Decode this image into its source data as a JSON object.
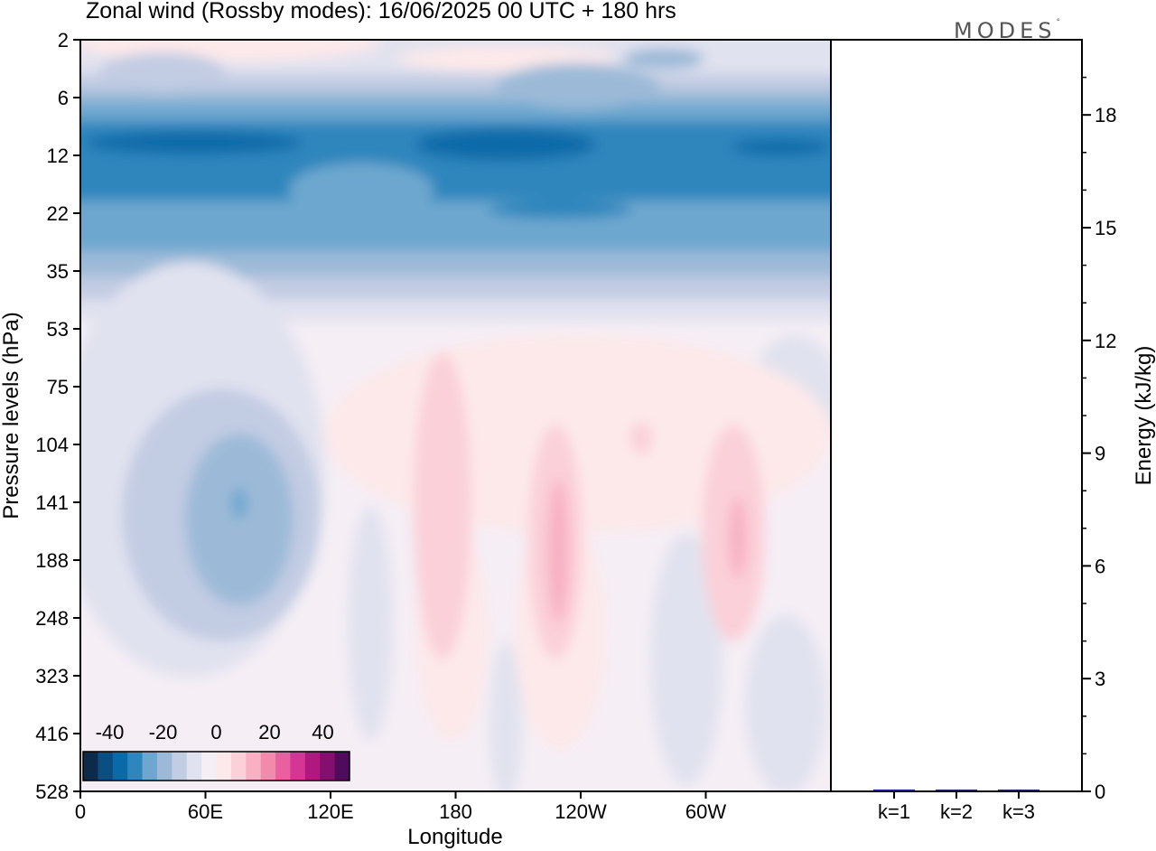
{
  "title": "Zonal wind (Rossby modes):  16/06/2025  00 UTC  + 180 hrs",
  "logo": {
    "text": "MODES",
    "mark": "°"
  },
  "chart_data": [
    {
      "type": "heatmap",
      "title": "Zonal wind (Rossby modes):  16/06/2025  00 UTC  + 180 hrs",
      "xlabel": "Longitude",
      "ylabel": "Pressure levels (hPa)",
      "x_ticks": [
        "0",
        "60E",
        "120E",
        "180",
        "120W",
        "60W"
      ],
      "x_tick_degrees": [
        0,
        60,
        120,
        180,
        240,
        300
      ],
      "xlim": [
        0,
        360
      ],
      "y_ticks": [
        "2",
        "6",
        "12",
        "22",
        "35",
        "53",
        "75",
        "104",
        "141",
        "188",
        "248",
        "323",
        "416",
        "528"
      ],
      "colorbar": {
        "tick_labels": [
          "-40",
          "-20",
          "0",
          "20",
          "40"
        ],
        "tick_values": [
          -40,
          -20,
          0,
          20,
          40
        ],
        "range": [
          -50,
          50
        ],
        "colors": [
          "#0c2a4a",
          "#0b4f82",
          "#0a6aa8",
          "#2f86bd",
          "#6da7cf",
          "#9cbad8",
          "#c2cce3",
          "#e1e2ef",
          "#f5eef5",
          "#fde9ea",
          "#fbd0d8",
          "#f8b0c2",
          "#f28aae",
          "#ea5fa0",
          "#d53594",
          "#b0177f",
          "#83106f",
          "#4f0b5c"
        ]
      }
    },
    {
      "type": "bar",
      "ylabel": "Energy (kJ/kg)",
      "ylim": [
        0,
        20
      ],
      "y_ticks": [
        "0",
        "3",
        "6",
        "9",
        "12",
        "15",
        "18"
      ],
      "y_tick_values": [
        0,
        3,
        6,
        9,
        12,
        15,
        18
      ],
      "categories": [
        "k=1",
        "k=2",
        "k=3"
      ],
      "values": [
        0.05,
        0.02,
        0.02
      ],
      "bar_colors": [
        "#1a1a8c",
        "#1a1a5c",
        "#1a1a5c"
      ]
    }
  ]
}
